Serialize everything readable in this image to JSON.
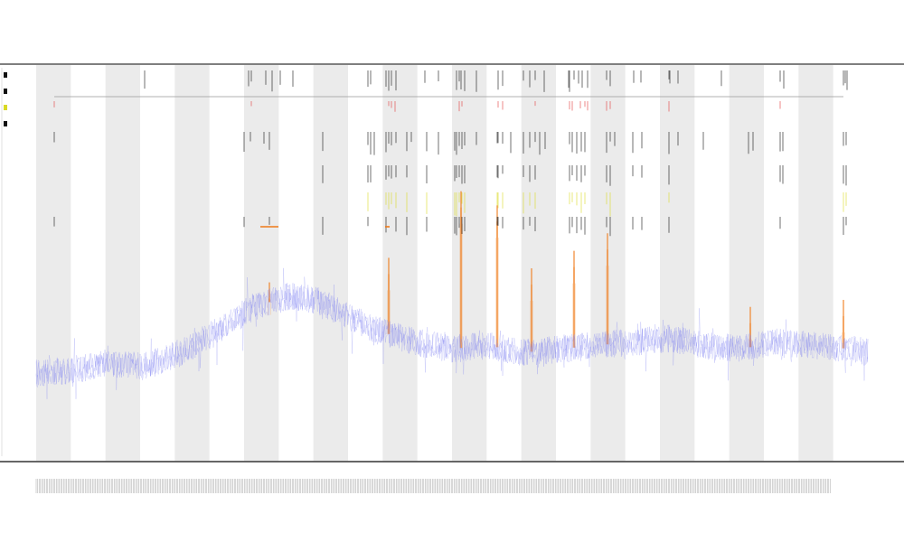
{
  "header": {
    "title": "",
    "subtitle_1": "",
    "subtitle_2": "",
    "x_caption": ""
  },
  "colors": {
    "band": "#ebebeb",
    "series_main": "#7b7ff0",
    "series_peak": "#f07a18",
    "marks_black": "#111111",
    "marks_red": "#e23b3b",
    "marks_yellow": "#d9d926",
    "axis": "#333333"
  },
  "chart_data": {
    "type": "line",
    "title": "",
    "xlabel": "",
    "ylabel": "",
    "ylim": [
      0,
      1
    ],
    "xlim": [
      0,
      920
    ],
    "grid": false,
    "bands": {
      "shaded_every_other": true,
      "count": 24
    },
    "series": [
      {
        "color_key": "series_main",
        "baseline_points": [
          [
            0,
            0.12
          ],
          [
            40,
            0.13
          ],
          [
            80,
            0.15
          ],
          [
            120,
            0.14
          ],
          [
            160,
            0.18
          ],
          [
            200,
            0.24
          ],
          [
            240,
            0.31
          ],
          [
            280,
            0.34
          ],
          [
            310,
            0.33
          ],
          [
            340,
            0.29
          ],
          [
            380,
            0.24
          ],
          [
            420,
            0.21
          ],
          [
            460,
            0.19
          ],
          [
            500,
            0.2
          ],
          [
            540,
            0.18
          ],
          [
            580,
            0.19
          ],
          [
            620,
            0.2
          ],
          [
            660,
            0.21
          ],
          [
            700,
            0.22
          ],
          [
            740,
            0.2
          ],
          [
            780,
            0.19
          ],
          [
            820,
            0.21
          ],
          [
            860,
            0.2
          ],
          [
            900,
            0.19
          ],
          [
            920,
            0.18
          ]
        ]
      }
    ],
    "peaks": [
      {
        "x": 258,
        "height": 0.38,
        "color_key": "series_peak"
      },
      {
        "x": 390,
        "height": 0.45,
        "color_key": "series_peak"
      },
      {
        "x": 470,
        "height": 0.64,
        "color_key": "series_peak"
      },
      {
        "x": 510,
        "height": 0.6,
        "color_key": "series_peak"
      },
      {
        "x": 548,
        "height": 0.42,
        "color_key": "series_peak"
      },
      {
        "x": 595,
        "height": 0.47,
        "color_key": "series_peak"
      },
      {
        "x": 632,
        "height": 0.52,
        "color_key": "series_peak"
      },
      {
        "x": 790,
        "height": 0.31,
        "color_key": "series_peak"
      },
      {
        "x": 893,
        "height": 0.33,
        "color_key": "series_peak"
      }
    ],
    "mark_rows": [
      {
        "row": "row1",
        "color_key": "marks_black",
        "x": [
          120,
          235,
          238,
          254,
          261,
          270,
          284,
          367,
          370,
          387,
          390,
          393,
          398,
          430,
          445,
          465,
          468,
          470,
          474,
          487,
          511,
          516,
          539,
          546,
          552,
          562,
          589,
          590,
          595,
          600,
          604,
          610,
          631,
          635,
          661,
          669,
          700,
          701,
          710,
          758,
          823,
          827,
          893,
          895,
          897
        ]
      },
      {
        "row": "row2",
        "color_key": "marks_red",
        "x": [
          20,
          238,
          390,
          393,
          397,
          468,
          471,
          511,
          516,
          552,
          590,
          593,
          602,
          607,
          610,
          631,
          635,
          700,
          823
        ]
      },
      {
        "row": "row3",
        "color_key": "marks_black",
        "x": [
          20,
          230,
          237,
          252,
          258,
          317,
          367,
          370,
          374,
          387,
          390,
          393,
          398,
          410,
          415,
          432,
          445,
          463,
          465,
          468,
          471,
          474,
          487,
          510,
          511,
          516,
          525,
          539,
          546,
          552,
          557,
          563,
          590,
          593,
          598,
          603,
          607,
          631,
          635,
          640,
          660,
          670,
          700,
          710,
          738,
          788,
          793,
          823,
          826,
          893,
          896
        ]
      },
      {
        "row": "row4",
        "color_key": "marks_black",
        "x": [
          317,
          367,
          370,
          387,
          390,
          393,
          398,
          410,
          432,
          463,
          465,
          468,
          471,
          474,
          510,
          511,
          516,
          539,
          546,
          552,
          590,
          593,
          598,
          603,
          607,
          631,
          635,
          660,
          670,
          700,
          823,
          826,
          893,
          896
        ]
      },
      {
        "row": "row5",
        "color_key": "marks_yellow",
        "x": [
          367,
          387,
          390,
          393,
          398,
          410,
          432,
          463,
          465,
          468,
          471,
          474,
          510,
          511,
          516,
          539,
          546,
          552,
          590,
          593,
          598,
          603,
          607,
          631,
          635,
          700,
          893,
          896
        ]
      },
      {
        "row": "row6",
        "color_key": "marks_black",
        "x": [
          20,
          230,
          258,
          317,
          367,
          387,
          398,
          410,
          432,
          463,
          465,
          468,
          471,
          474,
          510,
          511,
          516,
          539,
          546,
          552,
          590,
          593,
          598,
          603,
          607,
          631,
          635,
          660,
          670,
          700,
          823,
          893,
          896
        ]
      }
    ],
    "span_line": {
      "from_x": 20,
      "to_x": 893
    },
    "range_marks": [
      {
        "x_from": 248,
        "x_to": 268,
        "row": "row6",
        "color_key": "series_peak"
      },
      {
        "x_from": 386,
        "x_to": 391,
        "row": "row6",
        "color_key": "series_peak"
      }
    ]
  }
}
